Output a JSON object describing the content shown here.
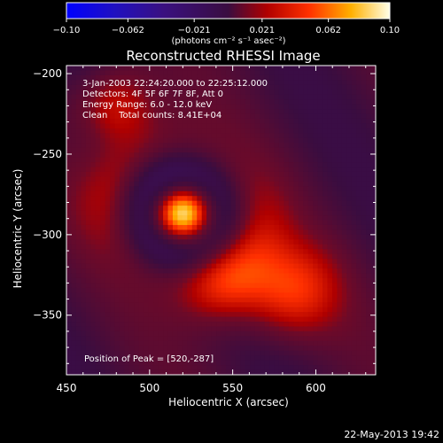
{
  "chart_data": {
    "type": "heatmap",
    "title": "Reconstructed RHESSI Image",
    "xlabel": "Heliocentric X (arcsec)",
    "ylabel": "Heliocentric Y (arcsec)",
    "xlim": [
      450,
      636
    ],
    "ylim": [
      -387,
      -195
    ],
    "x_ticks": [
      450,
      500,
      550,
      600
    ],
    "x_tick_labels": [
      "450",
      "500",
      "550",
      "600"
    ],
    "y_ticks": [
      -200,
      -250,
      -300,
      -350
    ],
    "y_tick_labels": [
      "−200",
      "−250",
      "−300",
      "−350"
    ],
    "colorbar": {
      "range": [
        -0.1,
        0.1
      ],
      "ticks": [
        -0.1,
        -0.062,
        -0.021,
        0.021,
        0.062,
        0.1
      ],
      "tick_labels": [
        "−0.10",
        "−0.062",
        "−0.021",
        "0.021",
        "0.062",
        "0.10"
      ],
      "units_label": "(photons cm⁻² s⁻¹ asec⁻²)"
    },
    "peak": {
      "x": 520,
      "y": -287,
      "value": 0.1
    },
    "features": [
      {
        "x": 520,
        "y": -287,
        "amp": 0.09,
        "sigma": 9
      },
      {
        "x": 480,
        "y": -220,
        "amp": 0.035,
        "sigma": 16
      },
      {
        "x": 585,
        "y": -335,
        "amp": 0.04,
        "sigma": 20
      },
      {
        "x": 545,
        "y": -330,
        "amp": 0.03,
        "sigma": 18
      }
    ],
    "annotations": [
      "3-Jan-2003 22:24:20.000 to 22:25:12.000",
      "Detectors: 4F 5F 6F 7F 8F, Att 0",
      "Energy Range: 6.0 - 12.0 keV",
      "Clean    Total counts: 8.41E+04"
    ],
    "peak_label": "Position of Peak = [520,-287]",
    "timestamp": "22-May-2013 19:42"
  }
}
